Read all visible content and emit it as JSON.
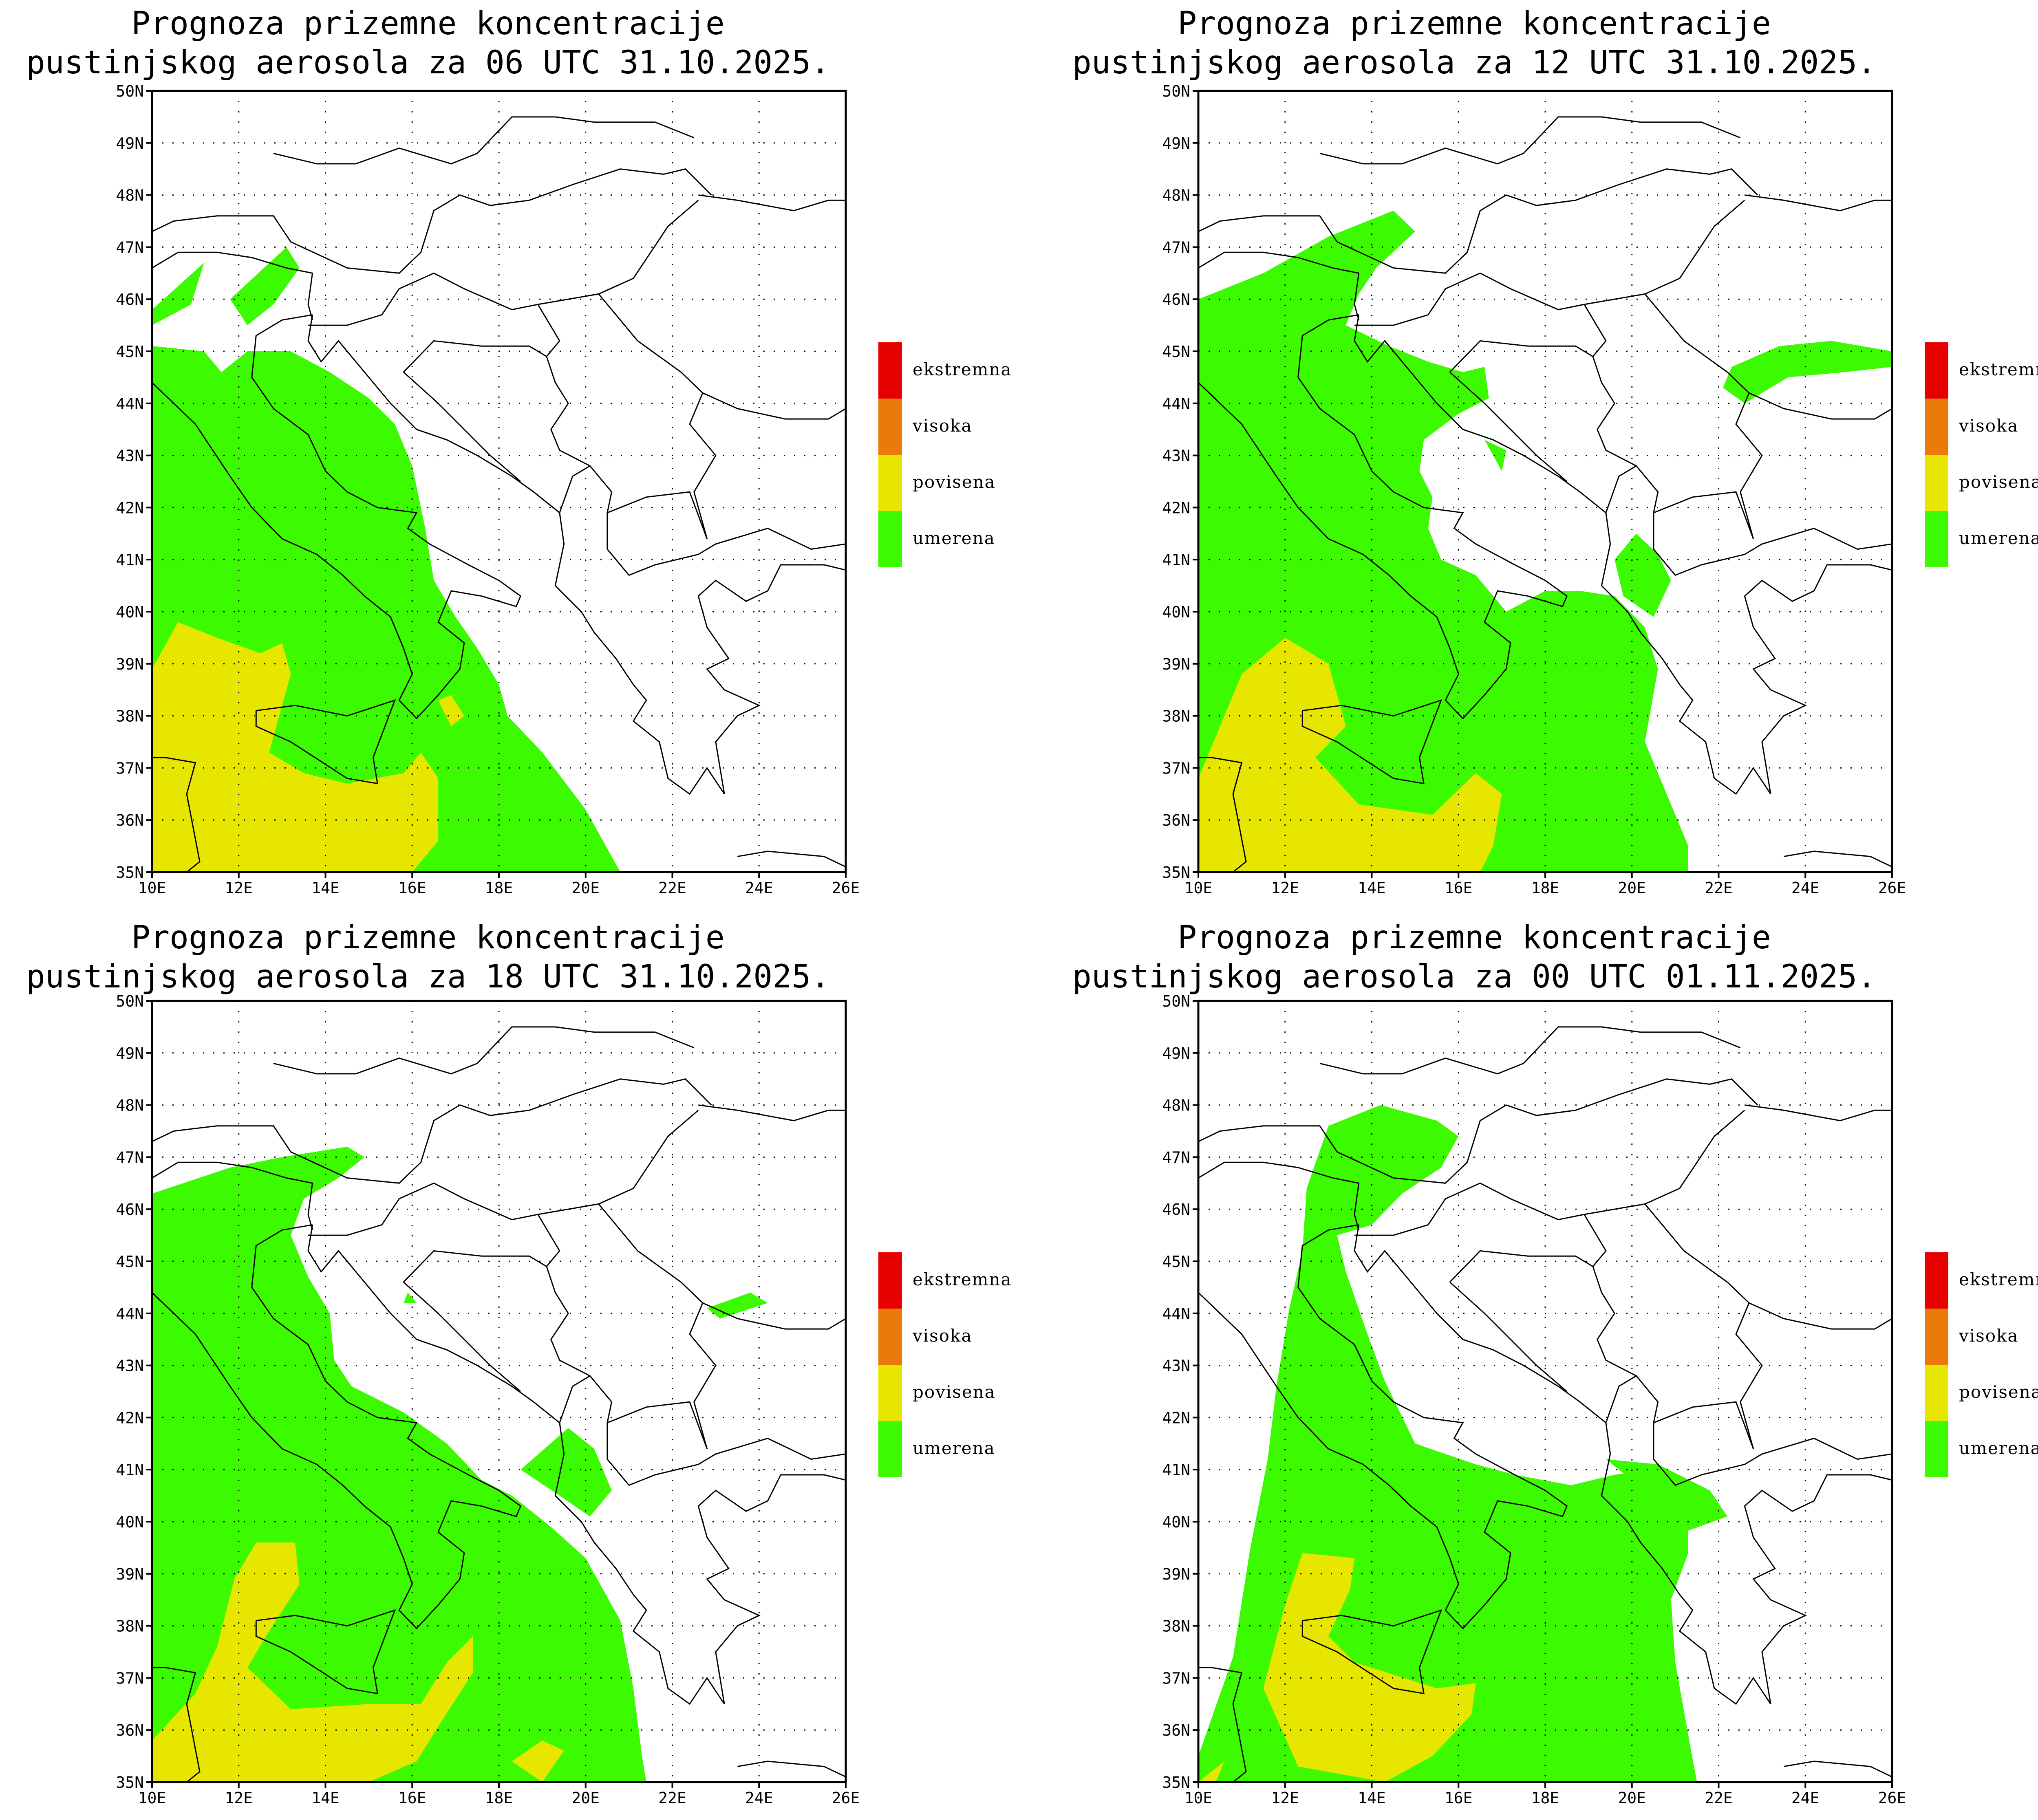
{
  "colors": {
    "ekstremna": "#e60000",
    "visoka": "#eb7a0d",
    "povisena": "#e6e600",
    "umerena": "#3cfa00",
    "border": "#000000",
    "grid": "#000000"
  },
  "legend": [
    "ekstremna",
    "visoka",
    "povisena",
    "umerena"
  ],
  "axes": {
    "lat_labels": [
      "35N",
      "36N",
      "37N",
      "38N",
      "39N",
      "40N",
      "41N",
      "42N",
      "43N",
      "44N",
      "45N",
      "46N",
      "47N",
      "48N",
      "49N",
      "50N"
    ],
    "lon_labels": [
      "10E",
      "12E",
      "14E",
      "16E",
      "18E",
      "20E",
      "22E",
      "24E",
      "26E"
    ]
  },
  "panels": [
    {
      "title_line1": "Prognoza prizemne koncentracije",
      "title_line2": "pustinjskog aerosola za 06 UTC 31.10.2025."
    },
    {
      "title_line1": "Prognoza prizemne koncentracije",
      "title_line2": "pustinjskog aerosola za 12 UTC 31.10.2025."
    },
    {
      "title_line1": "Prognoza prizemne koncentracije",
      "title_line2": "pustinjskog aerosola za 18 UTC 31.10.2025."
    },
    {
      "title_line1": "Prognoza prizemne koncentracije",
      "title_line2": "pustinjskog aerosola za 00 UTC 01.11.2025."
    }
  ]
}
